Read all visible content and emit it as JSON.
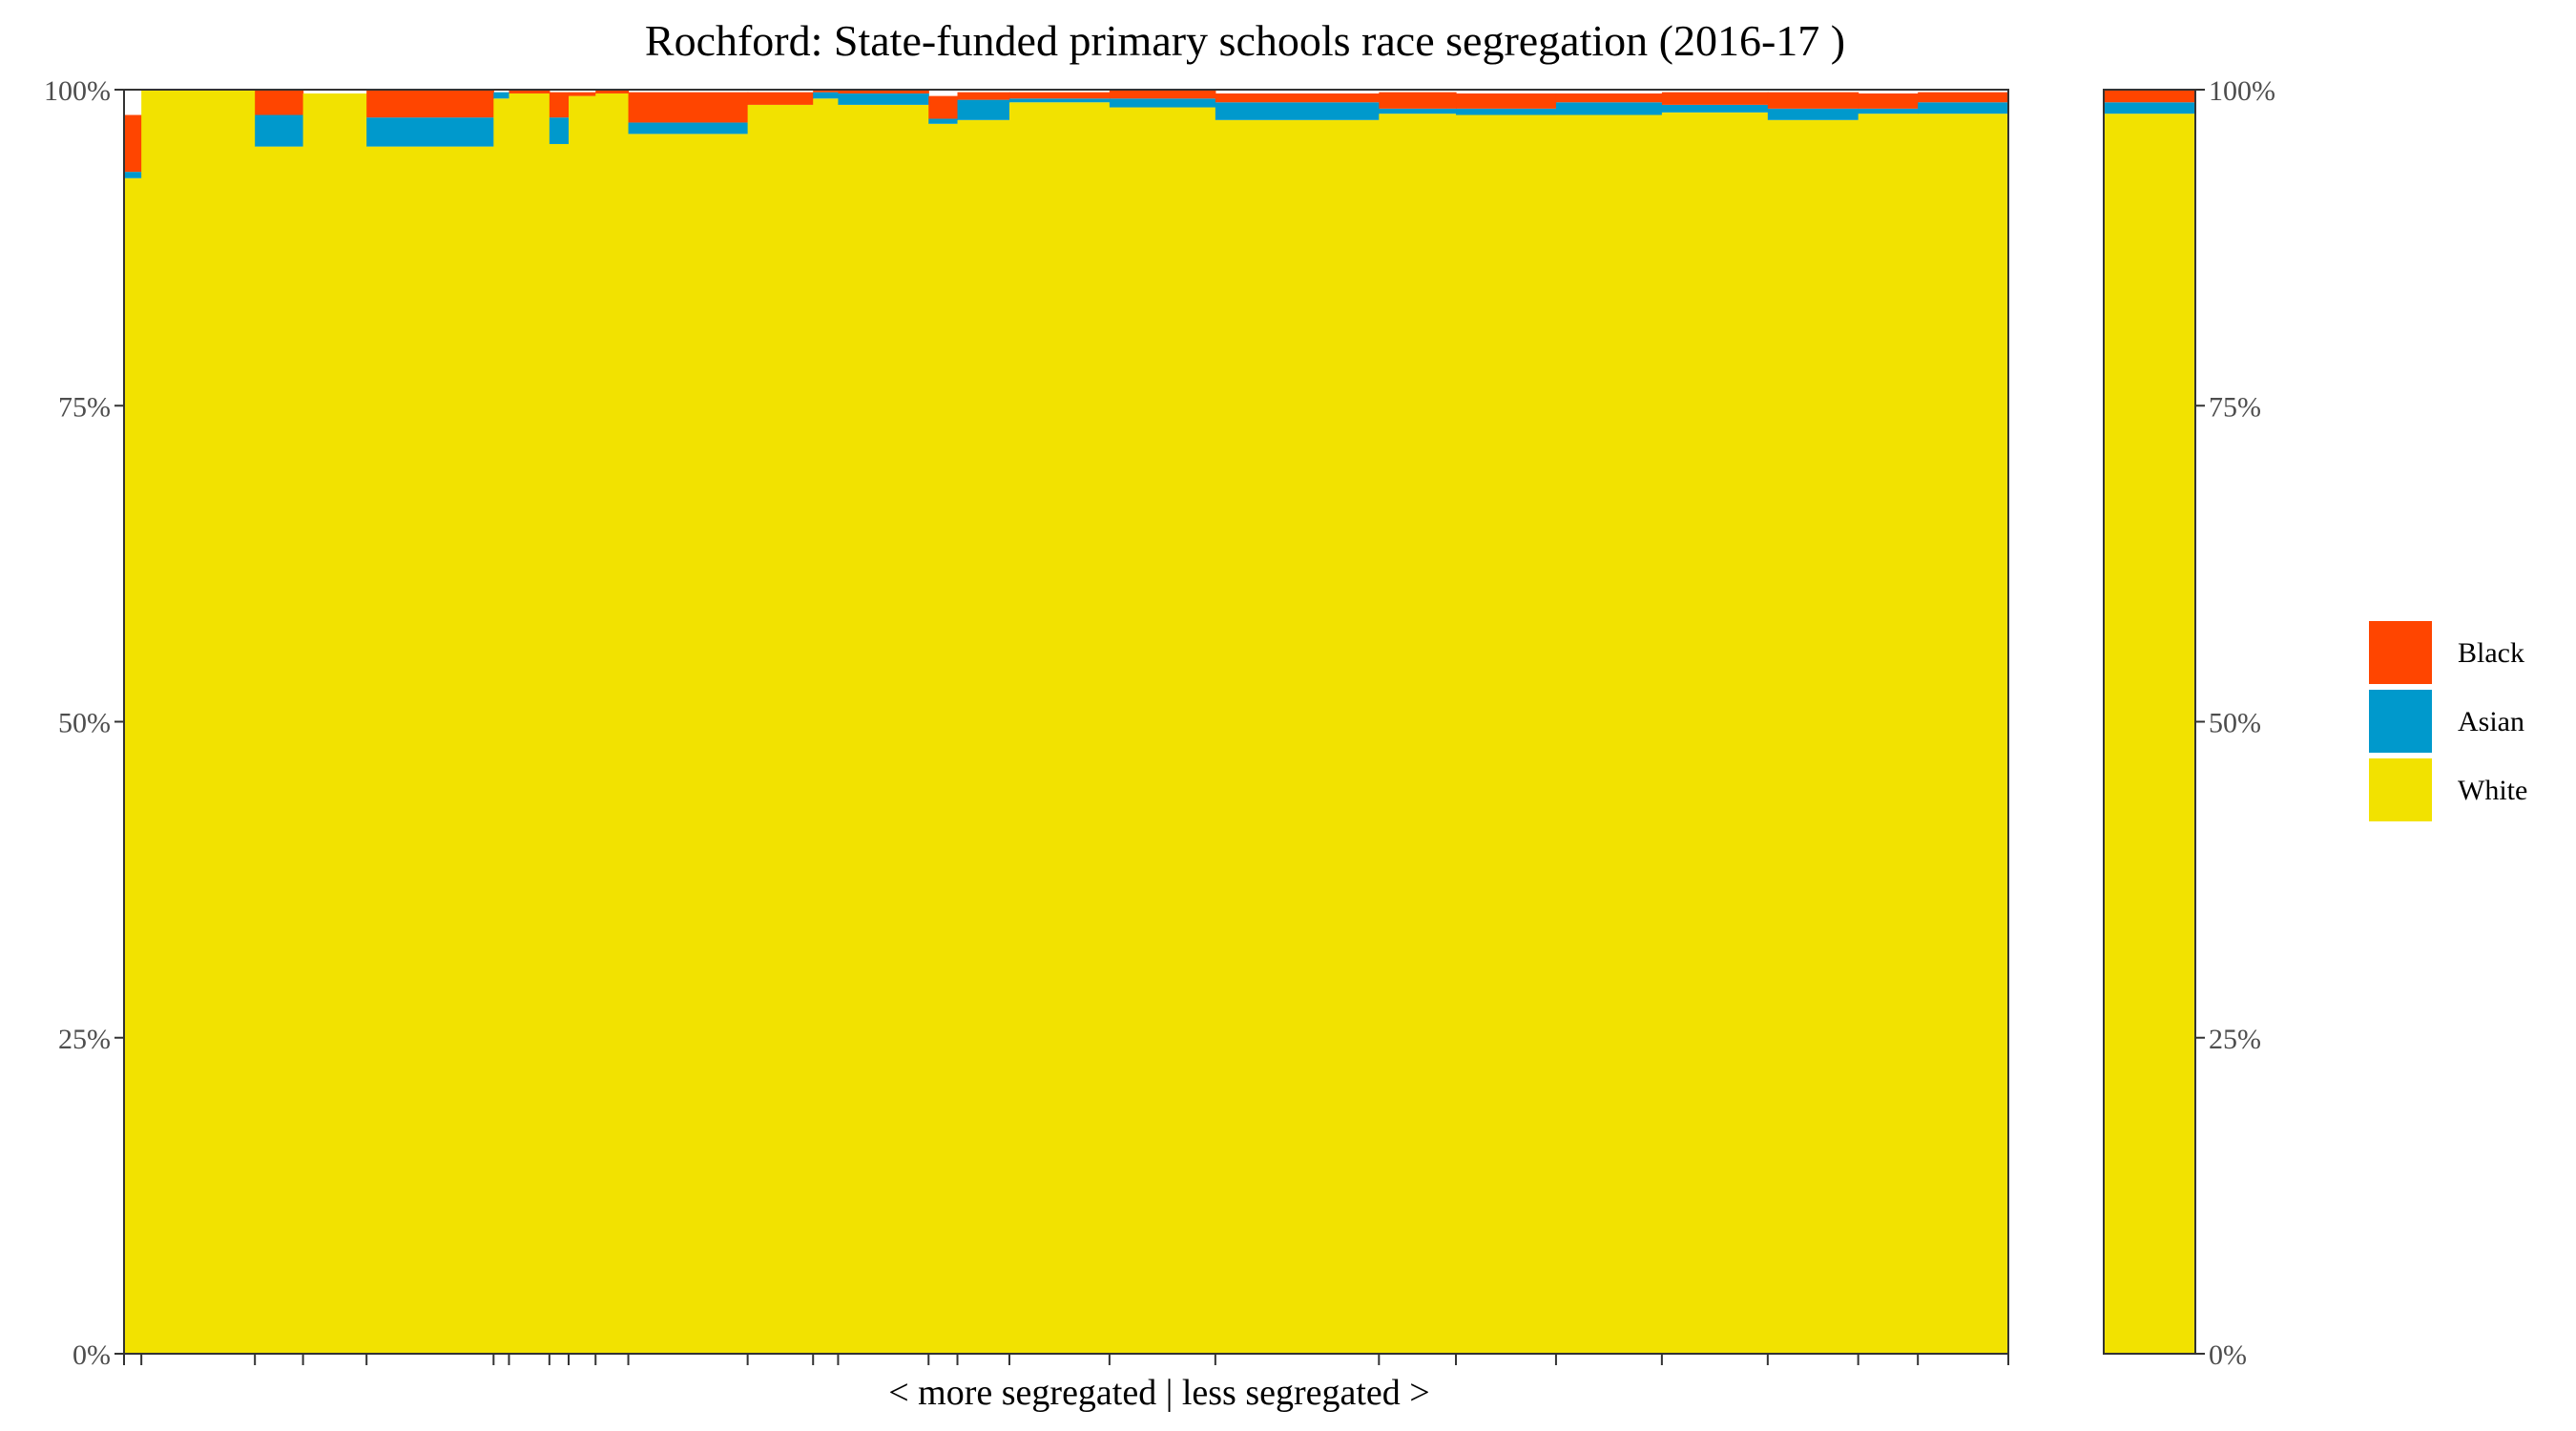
{
  "chart_data": {
    "type": "bar",
    "title": "Rochford: State-funded primary schools race segregation (2016-17 )",
    "xlabel": "< more segregated | less segregated >",
    "ylabel": "",
    "ylim": [
      0,
      100
    ],
    "y_ticks": [
      "0%",
      "25%",
      "50%",
      "75%",
      "100%"
    ],
    "y_tick_values": [
      0,
      25,
      50,
      75,
      100
    ],
    "stack_order": [
      "White",
      "Asian",
      "Black"
    ],
    "legend": {
      "placement": "right",
      "entries": [
        {
          "name": "Black",
          "color": "#FF4500"
        },
        {
          "name": "Asian",
          "color": "#0099CC"
        },
        {
          "name": "White",
          "color": "#F2E200"
        }
      ]
    },
    "grid": false,
    "x_scale_max": 100,
    "schools": [
      {
        "width": 0.9,
        "white": 93.0,
        "asian": 0.5,
        "black": 4.5
      },
      {
        "width": 5.9,
        "white": 100.0,
        "asian": 0.0,
        "black": 0.0
      },
      {
        "width": 2.5,
        "white": 95.5,
        "asian": 2.5,
        "black": 2.0
      },
      {
        "width": 3.3,
        "white": 99.7,
        "asian": 0.0,
        "black": 0.0
      },
      {
        "width": 6.6,
        "white": 95.5,
        "asian": 2.3,
        "black": 2.2
      },
      {
        "width": 0.8,
        "white": 99.3,
        "asian": 0.5,
        "black": 0.0
      },
      {
        "width": 2.1,
        "white": 99.7,
        "asian": 0.0,
        "black": 0.3
      },
      {
        "width": 1.0,
        "white": 95.7,
        "asian": 2.1,
        "black": 2.0
      },
      {
        "width": 1.4,
        "white": 99.5,
        "asian": 0.0,
        "black": 0.3
      },
      {
        "width": 1.7,
        "white": 99.7,
        "asian": 0.0,
        "black": 0.3
      },
      {
        "width": 6.2,
        "white": 96.5,
        "asian": 0.9,
        "black": 2.4
      },
      {
        "width": 3.4,
        "white": 98.8,
        "asian": 0.0,
        "black": 1.0
      },
      {
        "width": 1.3,
        "white": 99.3,
        "asian": 0.5,
        "black": 0.2
      },
      {
        "width": 4.7,
        "white": 98.8,
        "asian": 0.9,
        "black": 0.3
      },
      {
        "width": 1.5,
        "white": 97.3,
        "asian": 0.4,
        "black": 1.8
      },
      {
        "width": 2.7,
        "white": 97.6,
        "asian": 1.6,
        "black": 0.6
      },
      {
        "width": 5.2,
        "white": 99.0,
        "asian": 0.3,
        "black": 0.5
      },
      {
        "width": 5.5,
        "white": 98.6,
        "asian": 0.7,
        "black": 0.7
      },
      {
        "width": 8.5,
        "white": 97.6,
        "asian": 1.4,
        "black": 0.7
      },
      {
        "width": 4.0,
        "white": 98.1,
        "asian": 0.4,
        "black": 1.3
      },
      {
        "width": 5.2,
        "white": 98.0,
        "asian": 0.5,
        "black": 1.2
      },
      {
        "width": 5.5,
        "white": 98.0,
        "asian": 1.0,
        "black": 0.7
      },
      {
        "width": 5.5,
        "white": 98.2,
        "asian": 0.6,
        "black": 1.0
      },
      {
        "width": 4.7,
        "white": 97.6,
        "asian": 0.9,
        "black": 1.3
      },
      {
        "width": 3.1,
        "white": 98.1,
        "asian": 0.4,
        "black": 1.2
      },
      {
        "width": 4.7,
        "white": 98.1,
        "asian": 0.9,
        "black": 0.8
      }
    ],
    "overall": {
      "white": 98.1,
      "asian": 0.9,
      "black": 1.0
    }
  }
}
